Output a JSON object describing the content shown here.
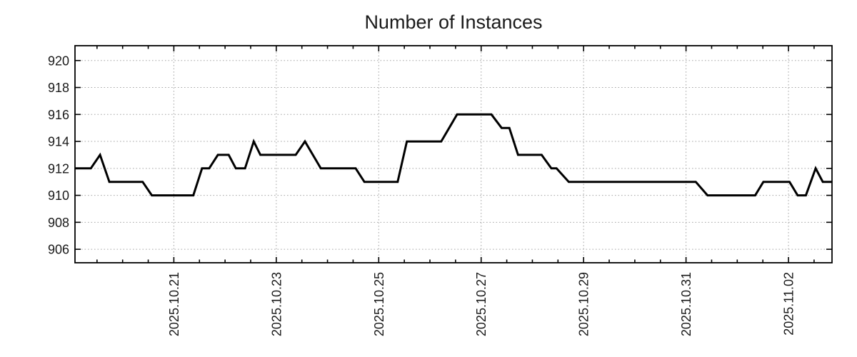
{
  "chart_data": {
    "type": "line",
    "title": "Number of Instances",
    "x_axis": {
      "unit": "date",
      "origin_date": "2025-10-19",
      "range_days": [
        0.07,
        14.85
      ],
      "major_ticks": [
        {
          "t": 2,
          "label": "2025.10.21"
        },
        {
          "t": 4,
          "label": "2025.10.23"
        },
        {
          "t": 6,
          "label": "2025.10.25"
        },
        {
          "t": 8,
          "label": "2025.10.27"
        },
        {
          "t": 10,
          "label": "2025.10.29"
        },
        {
          "t": 12,
          "label": "2025.10.31"
        },
        {
          "t": 14,
          "label": "2025.11.02"
        }
      ],
      "minor_tick_step_days": 0.5
    },
    "y_axis": {
      "ticks": [
        906,
        908,
        910,
        912,
        914,
        916,
        918,
        920
      ],
      "range": [
        905.0,
        921.1
      ]
    },
    "grid": true,
    "legend": "none",
    "series": [
      {
        "name": "instances",
        "points": [
          [
            0.07,
            912
          ],
          [
            0.38,
            912
          ],
          [
            0.56,
            913
          ],
          [
            0.74,
            911
          ],
          [
            1.39,
            911
          ],
          [
            1.57,
            910
          ],
          [
            2.38,
            910
          ],
          [
            2.55,
            912
          ],
          [
            2.69,
            912
          ],
          [
            2.86,
            913
          ],
          [
            3.07,
            913
          ],
          [
            3.21,
            912
          ],
          [
            3.39,
            912
          ],
          [
            3.56,
            914
          ],
          [
            3.69,
            913
          ],
          [
            4.38,
            913
          ],
          [
            4.56,
            914
          ],
          [
            4.87,
            912
          ],
          [
            5.55,
            912
          ],
          [
            5.72,
            911
          ],
          [
            6.37,
            911
          ],
          [
            6.55,
            914
          ],
          [
            7.22,
            914
          ],
          [
            7.53,
            916
          ],
          [
            8.2,
            916
          ],
          [
            8.4,
            915
          ],
          [
            8.55,
            915
          ],
          [
            8.72,
            913
          ],
          [
            9.18,
            913
          ],
          [
            9.37,
            912
          ],
          [
            9.47,
            912
          ],
          [
            9.71,
            911
          ],
          [
            12.19,
            911
          ],
          [
            12.42,
            910
          ],
          [
            13.35,
            910
          ],
          [
            13.51,
            911
          ],
          [
            14.02,
            911
          ],
          [
            14.18,
            910
          ],
          [
            14.34,
            910
          ],
          [
            14.53,
            912
          ],
          [
            14.67,
            911
          ],
          [
            14.85,
            911
          ]
        ]
      }
    ],
    "colors": {
      "line": "#000000",
      "grid": "#a6a6a6",
      "axis": "#000000",
      "text": "#1a1a1a",
      "background": "#ffffff"
    }
  }
}
